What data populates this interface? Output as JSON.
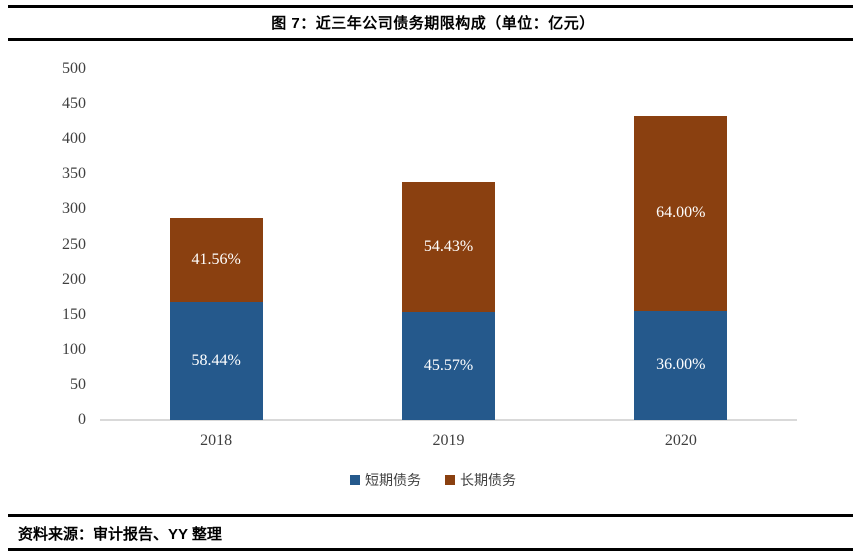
{
  "header": {
    "title": "图 7：近三年公司债务期限构成（单位：亿元）"
  },
  "footer": {
    "source": "资料来源：审计报告、YY 整理"
  },
  "chart_data": {
    "type": "bar",
    "stacked": true,
    "title": "图 7：近三年公司债务期限构成（单位：亿元）",
    "unit": "亿元",
    "categories": [
      "2018",
      "2019",
      "2020"
    ],
    "series": [
      {
        "name": "短期债务",
        "color": "#25598C",
        "values": [
          168.3,
          154.5,
          155.9
        ],
        "pct_labels": [
          "58.44%",
          "45.57%",
          "36.00%"
        ]
      },
      {
        "name": "长期债务",
        "color": "#8A4010",
        "values": [
          119.7,
          184.5,
          277.1
        ],
        "pct_labels": [
          "41.56%",
          "54.43%",
          "64.00%"
        ]
      }
    ],
    "totals": [
      288,
      339,
      433
    ],
    "xlabel": "",
    "ylabel": "",
    "ylim": [
      0,
      500
    ],
    "ytick_step": 50,
    "yticks": [
      0,
      50,
      100,
      150,
      200,
      250,
      300,
      350,
      400,
      450,
      500
    ],
    "grid": false,
    "legend_position": "bottom",
    "axis_color": "#d9d9d9",
    "tick_color": "#3f3f3f",
    "bar_label_color": "#ffffff"
  }
}
